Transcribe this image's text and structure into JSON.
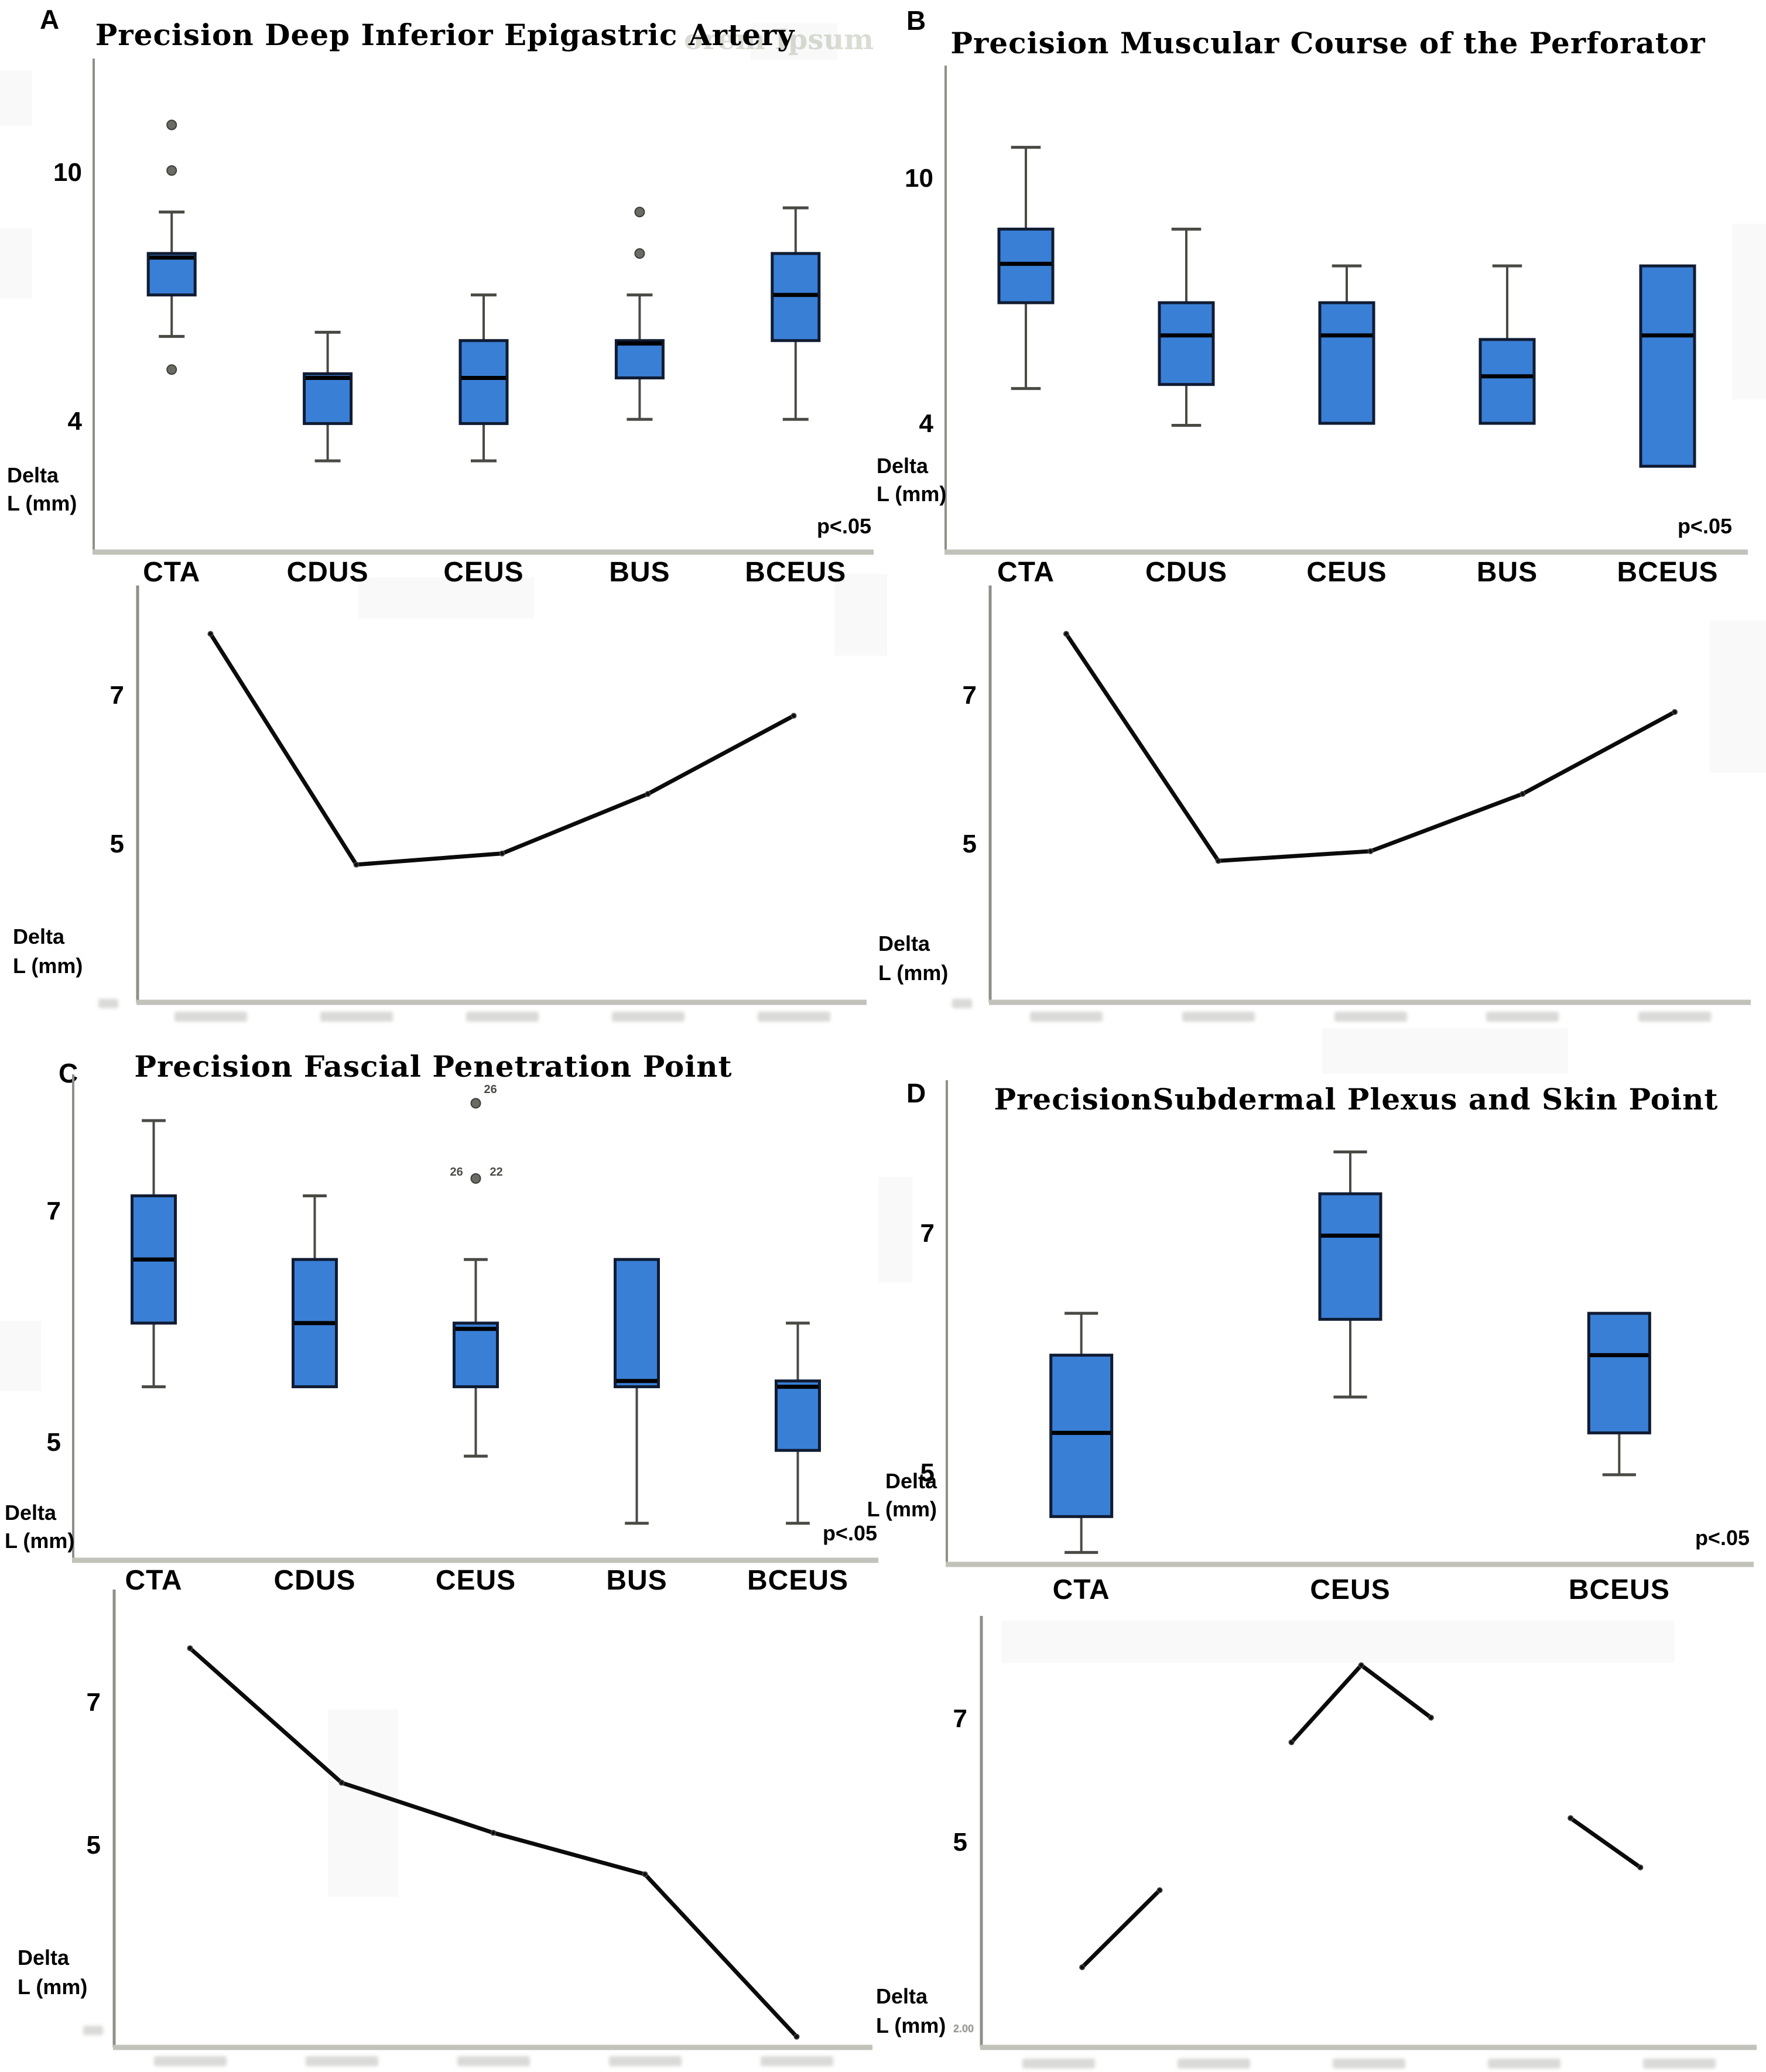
{
  "figure": {
    "watermark": "orem Ipsum",
    "colors": {
      "box_fill": "#3a7fd6",
      "box_border": "#101c33",
      "median": "#000000",
      "whisker": "#4a4a45",
      "outlier": "#6b6b64",
      "axis_horizontal": "#c2c2bb",
      "axis_vertical": "#8f8f89",
      "line_series": "#0b0b0b",
      "text": "#000000"
    }
  },
  "panels": [
    {
      "letter": "A",
      "title": "Precision Deep Inferior Epigastric Artery",
      "ylabel_line1": "Delta",
      "ylabel_line2": "L (mm)",
      "p_label": "p<.05"
    },
    {
      "letter": "B",
      "title": "Precision Muscular Course of the Perforator",
      "ylabel_line1": "Delta",
      "ylabel_line2": "L (mm)",
      "p_label": "p<.05"
    },
    {
      "letter": "C",
      "title": "Precision Fascial Penetration Point",
      "ylabel_line1": "Delta",
      "ylabel_line2": "L (mm)",
      "p_label": "p<.05"
    },
    {
      "letter": "D",
      "title": "PrecisionSubdermal Plexus and Skin Point",
      "ylabel_line1": "Delta",
      "ylabel_line2": "L (mm)",
      "p_label": "p<.05"
    }
  ],
  "chart_data": [
    {
      "panel": "A",
      "type": "box",
      "title": "Precision Deep Inferior Epigastric Artery",
      "ylabel": "Delta L (mm)",
      "annotation": "p<.05",
      "yticks": [
        10,
        4
      ],
      "ylim": [
        0.9,
        12.8
      ],
      "grid": false,
      "categories": [
        "CTA",
        "CDUS",
        "CEUS",
        "BUS",
        "BCEUS"
      ],
      "boxes": [
        {
          "category": "CTA",
          "whisker_low": 6.1,
          "q1": 7.1,
          "median": 8.0,
          "q3": 8.1,
          "whisker_high": 9.1,
          "outliers": [
            {
              "value": 11.2
            },
            {
              "value": 10.1
            },
            {
              "value": 5.3
            }
          ]
        },
        {
          "category": "CDUS",
          "whisker_low": 3.1,
          "q1": 4.0,
          "median": 5.1,
          "q3": 5.2,
          "whisker_high": 6.2
        },
        {
          "category": "CEUS",
          "whisker_low": 3.1,
          "q1": 4.0,
          "median": 5.1,
          "q3": 6.0,
          "whisker_high": 7.1
        },
        {
          "category": "BUS",
          "whisker_low": 4.1,
          "q1": 5.1,
          "median": 5.95,
          "q3": 6.0,
          "whisker_high": 7.1,
          "outliers": [
            {
              "value": 9.1
            },
            {
              "value": 8.1
            }
          ]
        },
        {
          "category": "BCEUS",
          "whisker_low": 4.1,
          "q1": 6.0,
          "median": 7.1,
          "q3": 8.1,
          "whisker_high": 9.2
        }
      ]
    },
    {
      "panel": "A",
      "type": "line",
      "ylabel": "Delta L (mm)",
      "yticks": [
        7,
        5
      ],
      "ylim": [
        2.9,
        8.5
      ],
      "x_positions": 5,
      "x_tick_labels_illegible": true,
      "values": [
        7.85,
        4.75,
        4.9,
        5.7,
        6.75
      ]
    },
    {
      "panel": "B",
      "type": "box",
      "title": "Precision Muscular Course of the Perforator",
      "ylabel": "Delta L (mm)",
      "annotation": "p<.05",
      "yticks": [
        10,
        4
      ],
      "ylim": [
        0.9,
        12.8
      ],
      "grid": false,
      "categories": [
        "CTA",
        "CDUS",
        "CEUS",
        "BUS",
        "BCEUS"
      ],
      "boxes": [
        {
          "category": "CTA",
          "whisker_low": 4.9,
          "q1": 7.0,
          "median": 7.95,
          "q3": 8.8,
          "whisker_high": 10.8
        },
        {
          "category": "CDUS",
          "whisker_low": 4.0,
          "q1": 5.0,
          "median": 6.2,
          "q3": 7.0,
          "whisker_high": 8.8
        },
        {
          "category": "CEUS",
          "whisker_low": null,
          "q1": 4.05,
          "median": 6.2,
          "q3": 7.0,
          "whisker_high": 7.9
        },
        {
          "category": "BUS",
          "whisker_low": null,
          "q1": 4.05,
          "median": 5.2,
          "q3": 6.1,
          "whisker_high": 7.9
        },
        {
          "category": "BCEUS",
          "whisker_low": null,
          "q1": 3.0,
          "median": 6.2,
          "q3": 7.9,
          "whisker_high": null
        }
      ]
    },
    {
      "panel": "B",
      "type": "line",
      "ylabel": "Delta L (mm)",
      "yticks": [
        7,
        5
      ],
      "ylim": [
        2.9,
        8.5
      ],
      "x_positions": 5,
      "x_tick_labels_illegible": true,
      "values": [
        7.85,
        4.8,
        4.93,
        5.7,
        6.8
      ]
    },
    {
      "panel": "C",
      "type": "box",
      "title": "Precision Fascial Penetration Point",
      "ylabel": "Delta L (mm)",
      "annotation": "p<.05",
      "yticks": [
        7,
        5
      ],
      "ylim": [
        4.0,
        8.2
      ],
      "grid": false,
      "categories": [
        "CTA",
        "CDUS",
        "CEUS",
        "BUS",
        "BCEUS"
      ],
      "boxes": [
        {
          "category": "CTA",
          "whisker_low": 5.5,
          "q1": 6.05,
          "median": 6.6,
          "q3": 7.15,
          "whisker_high": 7.8
        },
        {
          "category": "CDUS",
          "whisker_low": null,
          "q1": 5.5,
          "median": 6.05,
          "q3": 6.6,
          "whisker_high": 7.15
        },
        {
          "category": "CEUS",
          "whisker_low": 4.9,
          "q1": 5.5,
          "median": 6.0,
          "q3": 6.05,
          "whisker_high": 6.6,
          "outliers": [
            {
              "value": 7.95,
              "label": "26"
            },
            {
              "value": 7.3,
              "label_left": "26",
              "label_right": "22"
            }
          ]
        },
        {
          "category": "BUS",
          "whisker_low": 4.32,
          "q1": 5.5,
          "median": 5.55,
          "q3": 6.6,
          "whisker_high": null
        },
        {
          "category": "BCEUS",
          "whisker_low": 4.32,
          "q1": 4.95,
          "median": 5.5,
          "q3": 5.55,
          "whisker_high": 6.05
        }
      ]
    },
    {
      "panel": "C",
      "type": "line",
      "ylabel": "Delta L (mm)",
      "yticks": [
        7,
        5
      ],
      "ylim": [
        2.2,
        8.6
      ],
      "x_positions": 5,
      "x_tick_labels_illegible": true,
      "values": [
        7.78,
        5.9,
        5.2,
        4.62,
        2.35
      ]
    },
    {
      "panel": "D",
      "type": "box",
      "title": "PrecisionSubdermal Plexus and Skin Point",
      "ylabel": "Delta L (mm)",
      "annotation": "p<.05",
      "yticks": [
        7,
        5
      ],
      "ylim": [
        4.25,
        8.3
      ],
      "grid": false,
      "categories": [
        "CTA",
        "CEUS",
        "BCEUS"
      ],
      "boxes": [
        {
          "category": "CTA",
          "whisker_low": 4.35,
          "q1": 4.65,
          "median": 5.35,
          "q3": 6.0,
          "whisker_high": 6.35
        },
        {
          "category": "CEUS",
          "whisker_low": 5.65,
          "q1": 6.3,
          "median": 7.0,
          "q3": 7.35,
          "whisker_high": 7.7
        },
        {
          "category": "BCEUS",
          "whisker_low": 5.0,
          "q1": 5.35,
          "median": 6.0,
          "q3": 6.35,
          "whisker_high": null
        }
      ]
    },
    {
      "panel": "D",
      "type": "line",
      "ylabel": "Delta L (mm)",
      "origin_label": "2.00",
      "yticks": [
        7,
        5
      ],
      "ylim": [
        1.7,
        8.7
      ],
      "x_positions": 5,
      "x_tick_labels_illegible": true,
      "segments": [
        [
          {
            "x": 0.13,
            "value": 3.0
          },
          {
            "x": 0.23,
            "value": 4.25
          }
        ],
        [
          {
            "x": 0.4,
            "value": 6.65
          },
          {
            "x": 0.49,
            "value": 7.9
          },
          {
            "x": 0.58,
            "value": 7.05
          }
        ],
        [
          {
            "x": 0.76,
            "value": 5.42
          },
          {
            "x": 0.85,
            "value": 4.62
          }
        ]
      ]
    }
  ]
}
